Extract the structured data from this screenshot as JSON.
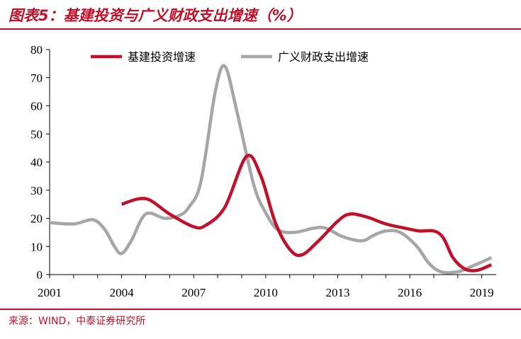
{
  "title": "图表5：基建投资与广义财政支出增速（%）",
  "source": "来源：WIND，中泰证券研究所",
  "chart_data": {
    "type": "line",
    "title": "图表5：基建投资与广义财政支出增速（%）",
    "xlabel": "",
    "ylabel": "",
    "xlim": [
      2001,
      2019.6
    ],
    "ylim": [
      0,
      80
    ],
    "yticks": [
      "0",
      "10",
      "20",
      "30",
      "40",
      "50",
      "60",
      "70",
      "80"
    ],
    "xticks": [
      "2001",
      "2004",
      "2007",
      "2010",
      "2013",
      "2016",
      "2019"
    ],
    "legend_position": "top",
    "series": [
      {
        "name": "基建投资增速",
        "color": "#c0102a",
        "x": [
          2004.0,
          2005.0,
          2006.0,
          2007.0,
          2007.5,
          2008.3,
          2009.2,
          2009.8,
          2010.4,
          2011.0,
          2011.5,
          2012.2,
          2013.0,
          2013.5,
          2014.2,
          2015.0,
          2015.8,
          2016.4,
          2017.0,
          2017.4,
          2017.8,
          2018.3,
          2018.8,
          2019.4
        ],
        "y": [
          25,
          27,
          21.5,
          17,
          17.5,
          24,
          42,
          35,
          18.5,
          9,
          7,
          12,
          19,
          21.5,
          20.5,
          18,
          16.5,
          15.5,
          15.5,
          13,
          6,
          2,
          1.5,
          3.5
        ]
      },
      {
        "name": "广义财政支出增速",
        "color": "#a6a6a6",
        "x": [
          2001.0,
          2002.0,
          2002.8,
          2003.3,
          2003.7,
          2004.0,
          2004.4,
          2005.0,
          2005.8,
          2006.4,
          2006.8,
          2007.3,
          2007.9,
          2008.3,
          2008.8,
          2009.5,
          2010.0,
          2010.5,
          2011.2,
          2012.0,
          2012.5,
          2013.2,
          2014.0,
          2014.5,
          2015.0,
          2015.6,
          2016.3,
          2016.8,
          2017.3,
          2018.0,
          2018.6,
          2019.4
        ],
        "y": [
          18.5,
          18,
          19.5,
          16,
          10,
          7.5,
          12,
          21.5,
          20,
          21,
          24,
          33,
          65,
          74,
          58,
          32,
          22,
          16,
          15,
          16.5,
          16.5,
          13.5,
          12,
          14,
          15.5,
          15,
          10,
          4,
          1,
          1,
          3,
          6
        ]
      }
    ]
  }
}
